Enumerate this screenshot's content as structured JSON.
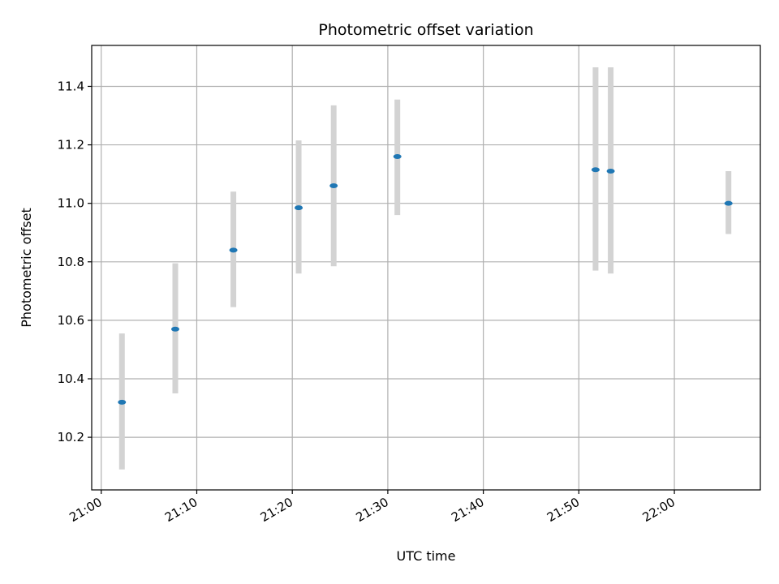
{
  "chart_data": {
    "type": "scatter",
    "title": "Photometric offset variation",
    "xlabel": "UTC time",
    "ylabel": "Photometric offset",
    "x_ticks": [
      "21:00",
      "21:10",
      "21:20",
      "21:30",
      "21:40",
      "21:50",
      "22:00"
    ],
    "y_ticks": [
      "10.2",
      "10.4",
      "10.6",
      "10.8",
      "11.0",
      "11.2",
      "11.4"
    ],
    "xlim": [
      "20:59",
      "22:09"
    ],
    "ylim": [
      10.02,
      11.54
    ],
    "grid": true,
    "colors": {
      "point": "#1f77b4",
      "errorbar": "#d3d3d3",
      "grid": "#b0b0b0"
    },
    "points": [
      {
        "time": "21:02:10",
        "y": 10.32,
        "err_low": 10.09,
        "err_high": 10.555
      },
      {
        "time": "21:07:45",
        "y": 10.57,
        "err_low": 10.35,
        "err_high": 10.795
      },
      {
        "time": "21:13:50",
        "y": 10.84,
        "err_low": 10.645,
        "err_high": 11.04
      },
      {
        "time": "21:20:40",
        "y": 10.985,
        "err_low": 10.76,
        "err_high": 11.215
      },
      {
        "time": "21:24:20",
        "y": 11.06,
        "err_low": 10.785,
        "err_high": 11.335
      },
      {
        "time": "21:31:00",
        "y": 11.16,
        "err_low": 10.96,
        "err_high": 11.355
      },
      {
        "time": "21:51:45",
        "y": 11.115,
        "err_low": 10.77,
        "err_high": 11.465
      },
      {
        "time": "21:53:20",
        "y": 11.11,
        "err_low": 10.76,
        "err_high": 11.465
      },
      {
        "time": "22:05:40",
        "y": 11.0,
        "err_low": 10.895,
        "err_high": 11.11
      }
    ]
  }
}
